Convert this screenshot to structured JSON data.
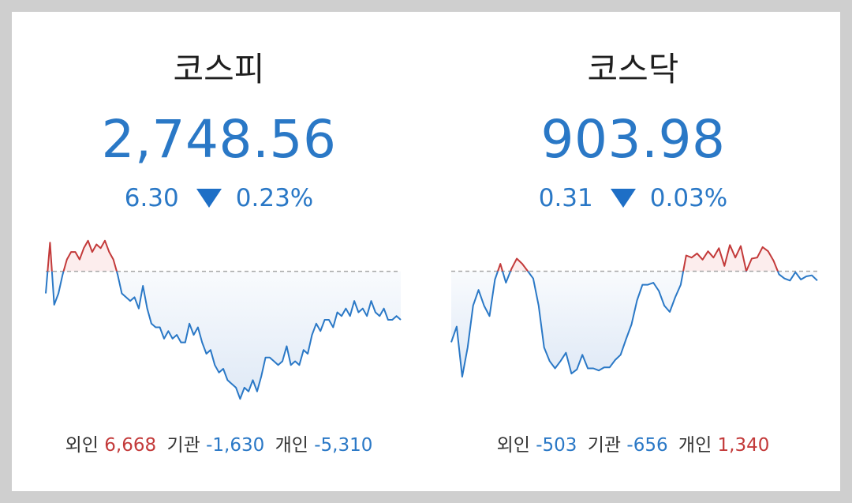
{
  "colors": {
    "up": "#c33a3a",
    "down": "#2a78c6",
    "baseline": "#a8a8a8",
    "fill": "#dfe9f6"
  },
  "markets": [
    {
      "name": "코스피",
      "value": "2,748.56",
      "change": "6.30",
      "direction_icon": "triangle-down-icon",
      "change_pct": "0.23%",
      "investors": [
        {
          "label": "외인",
          "value": "6,668",
          "sign": "pos"
        },
        {
          "label": "기관",
          "value": "-1,630",
          "sign": "neg"
        },
        {
          "label": "개인",
          "value": "-5,310",
          "sign": "neg"
        }
      ],
      "chart_data": {
        "type": "line",
        "baseline": 2754.86,
        "ylim": [
          2720,
          2764
        ],
        "values": [
          2749,
          2762.5,
          2746,
          2749,
          2754,
          2758,
          2760,
          2760,
          2758,
          2761,
          2763,
          2760,
          2762,
          2761,
          2763,
          2760,
          2758,
          2754,
          2749,
          2748,
          2747,
          2748,
          2745,
          2751,
          2745,
          2741,
          2740,
          2740,
          2737,
          2739,
          2737,
          2738,
          2736,
          2736,
          2741,
          2738,
          2740,
          2736,
          2733,
          2734,
          2730,
          2728,
          2729,
          2726,
          2725,
          2724,
          2721,
          2724,
          2723,
          2726,
          2723,
          2727,
          2732,
          2732,
          2731,
          2730,
          2731,
          2735,
          2730,
          2731,
          2730,
          2734,
          2733,
          2738,
          2741,
          2739,
          2742,
          2742,
          2740,
          2744,
          2743,
          2745,
          2743,
          2747,
          2744,
          2745,
          2743,
          2747,
          2744,
          2743,
          2745,
          2742,
          2742,
          2743,
          2742
        ]
      }
    },
    {
      "name": "코스닥",
      "value": "903.98",
      "change": "0.31",
      "direction_icon": "triangle-down-icon",
      "change_pct": "0.03%",
      "investors": [
        {
          "label": "외인",
          "value": "-503",
          "sign": "neg"
        },
        {
          "label": "기관",
          "value": "-656",
          "sign": "neg"
        },
        {
          "label": "개인",
          "value": "1,340",
          "sign": "pos"
        }
      ],
      "chart_data": {
        "type": "line",
        "baseline": 904.29,
        "ylim": [
          893,
          907.2
        ],
        "values": [
          897.5,
          899,
          894.2,
          897,
          901,
          902.5,
          901,
          900,
          903.5,
          905,
          903.2,
          904.5,
          905.5,
          905,
          904.3,
          903.6,
          901,
          897,
          895.7,
          895,
          895.7,
          896.5,
          894.5,
          894.9,
          896.3,
          895,
          895,
          894.8,
          895.1,
          895.1,
          895.8,
          896.3,
          897.8,
          899.2,
          901.5,
          903,
          903,
          903.2,
          902.4,
          901,
          900.4,
          901.8,
          903,
          905.8,
          905.6,
          906,
          905.4,
          906.2,
          905.6,
          906.5,
          904.8,
          906.8,
          905.6,
          906.7,
          904.3,
          905.5,
          905.6,
          906.6,
          906.2,
          905.3,
          904,
          903.6,
          903.4,
          904.2,
          903.5,
          903.8,
          903.9,
          903.4
        ]
      }
    }
  ]
}
